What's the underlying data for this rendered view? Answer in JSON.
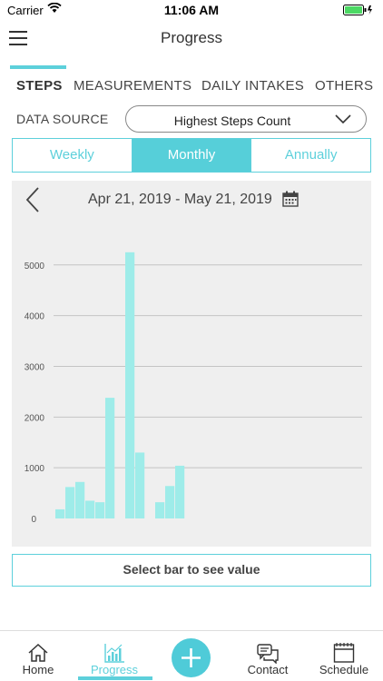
{
  "status_bar": {
    "carrier": "Carrier",
    "time": "11:06 AM"
  },
  "nav": {
    "title": "Progress"
  },
  "tabs": [
    {
      "label": "STEPS",
      "active": true
    },
    {
      "label": "MEASUREMENTS",
      "active": false
    },
    {
      "label": "DAILY INTAKES",
      "active": false
    },
    {
      "label": "OTHERS",
      "active": false
    }
  ],
  "data_source": {
    "label": "DATA SOURCE",
    "value": "Highest Steps Count"
  },
  "period_segments": [
    {
      "label": "Weekly",
      "active": false
    },
    {
      "label": "Monthly",
      "active": true
    },
    {
      "label": "Annually",
      "active": false
    }
  ],
  "chart_header": {
    "range": "Apr 21, 2019 - May 21, 2019"
  },
  "chart_data": {
    "type": "bar",
    "title": "",
    "xlabel": "",
    "ylabel": "",
    "ylim": [
      0,
      5500
    ],
    "yticks": [
      0,
      1000,
      2000,
      3000,
      4000,
      5000
    ],
    "grid": true,
    "color": "#9eece9",
    "values": [
      180,
      620,
      720,
      350,
      320,
      2380,
      0,
      5250,
      1300,
      0,
      320,
      640,
      1040
    ]
  },
  "select_bar_hint": "Select bar to see value",
  "bottom_nav": {
    "items": [
      {
        "label": "Home",
        "icon": "home-icon",
        "active": false
      },
      {
        "label": "Progress",
        "icon": "progress-chart-icon",
        "active": true
      },
      {
        "label": "Contact",
        "icon": "chat-icon",
        "active": false
      },
      {
        "label": "Schedule",
        "icon": "calendar-icon",
        "active": false
      }
    ],
    "accent": "#5dd0db"
  }
}
